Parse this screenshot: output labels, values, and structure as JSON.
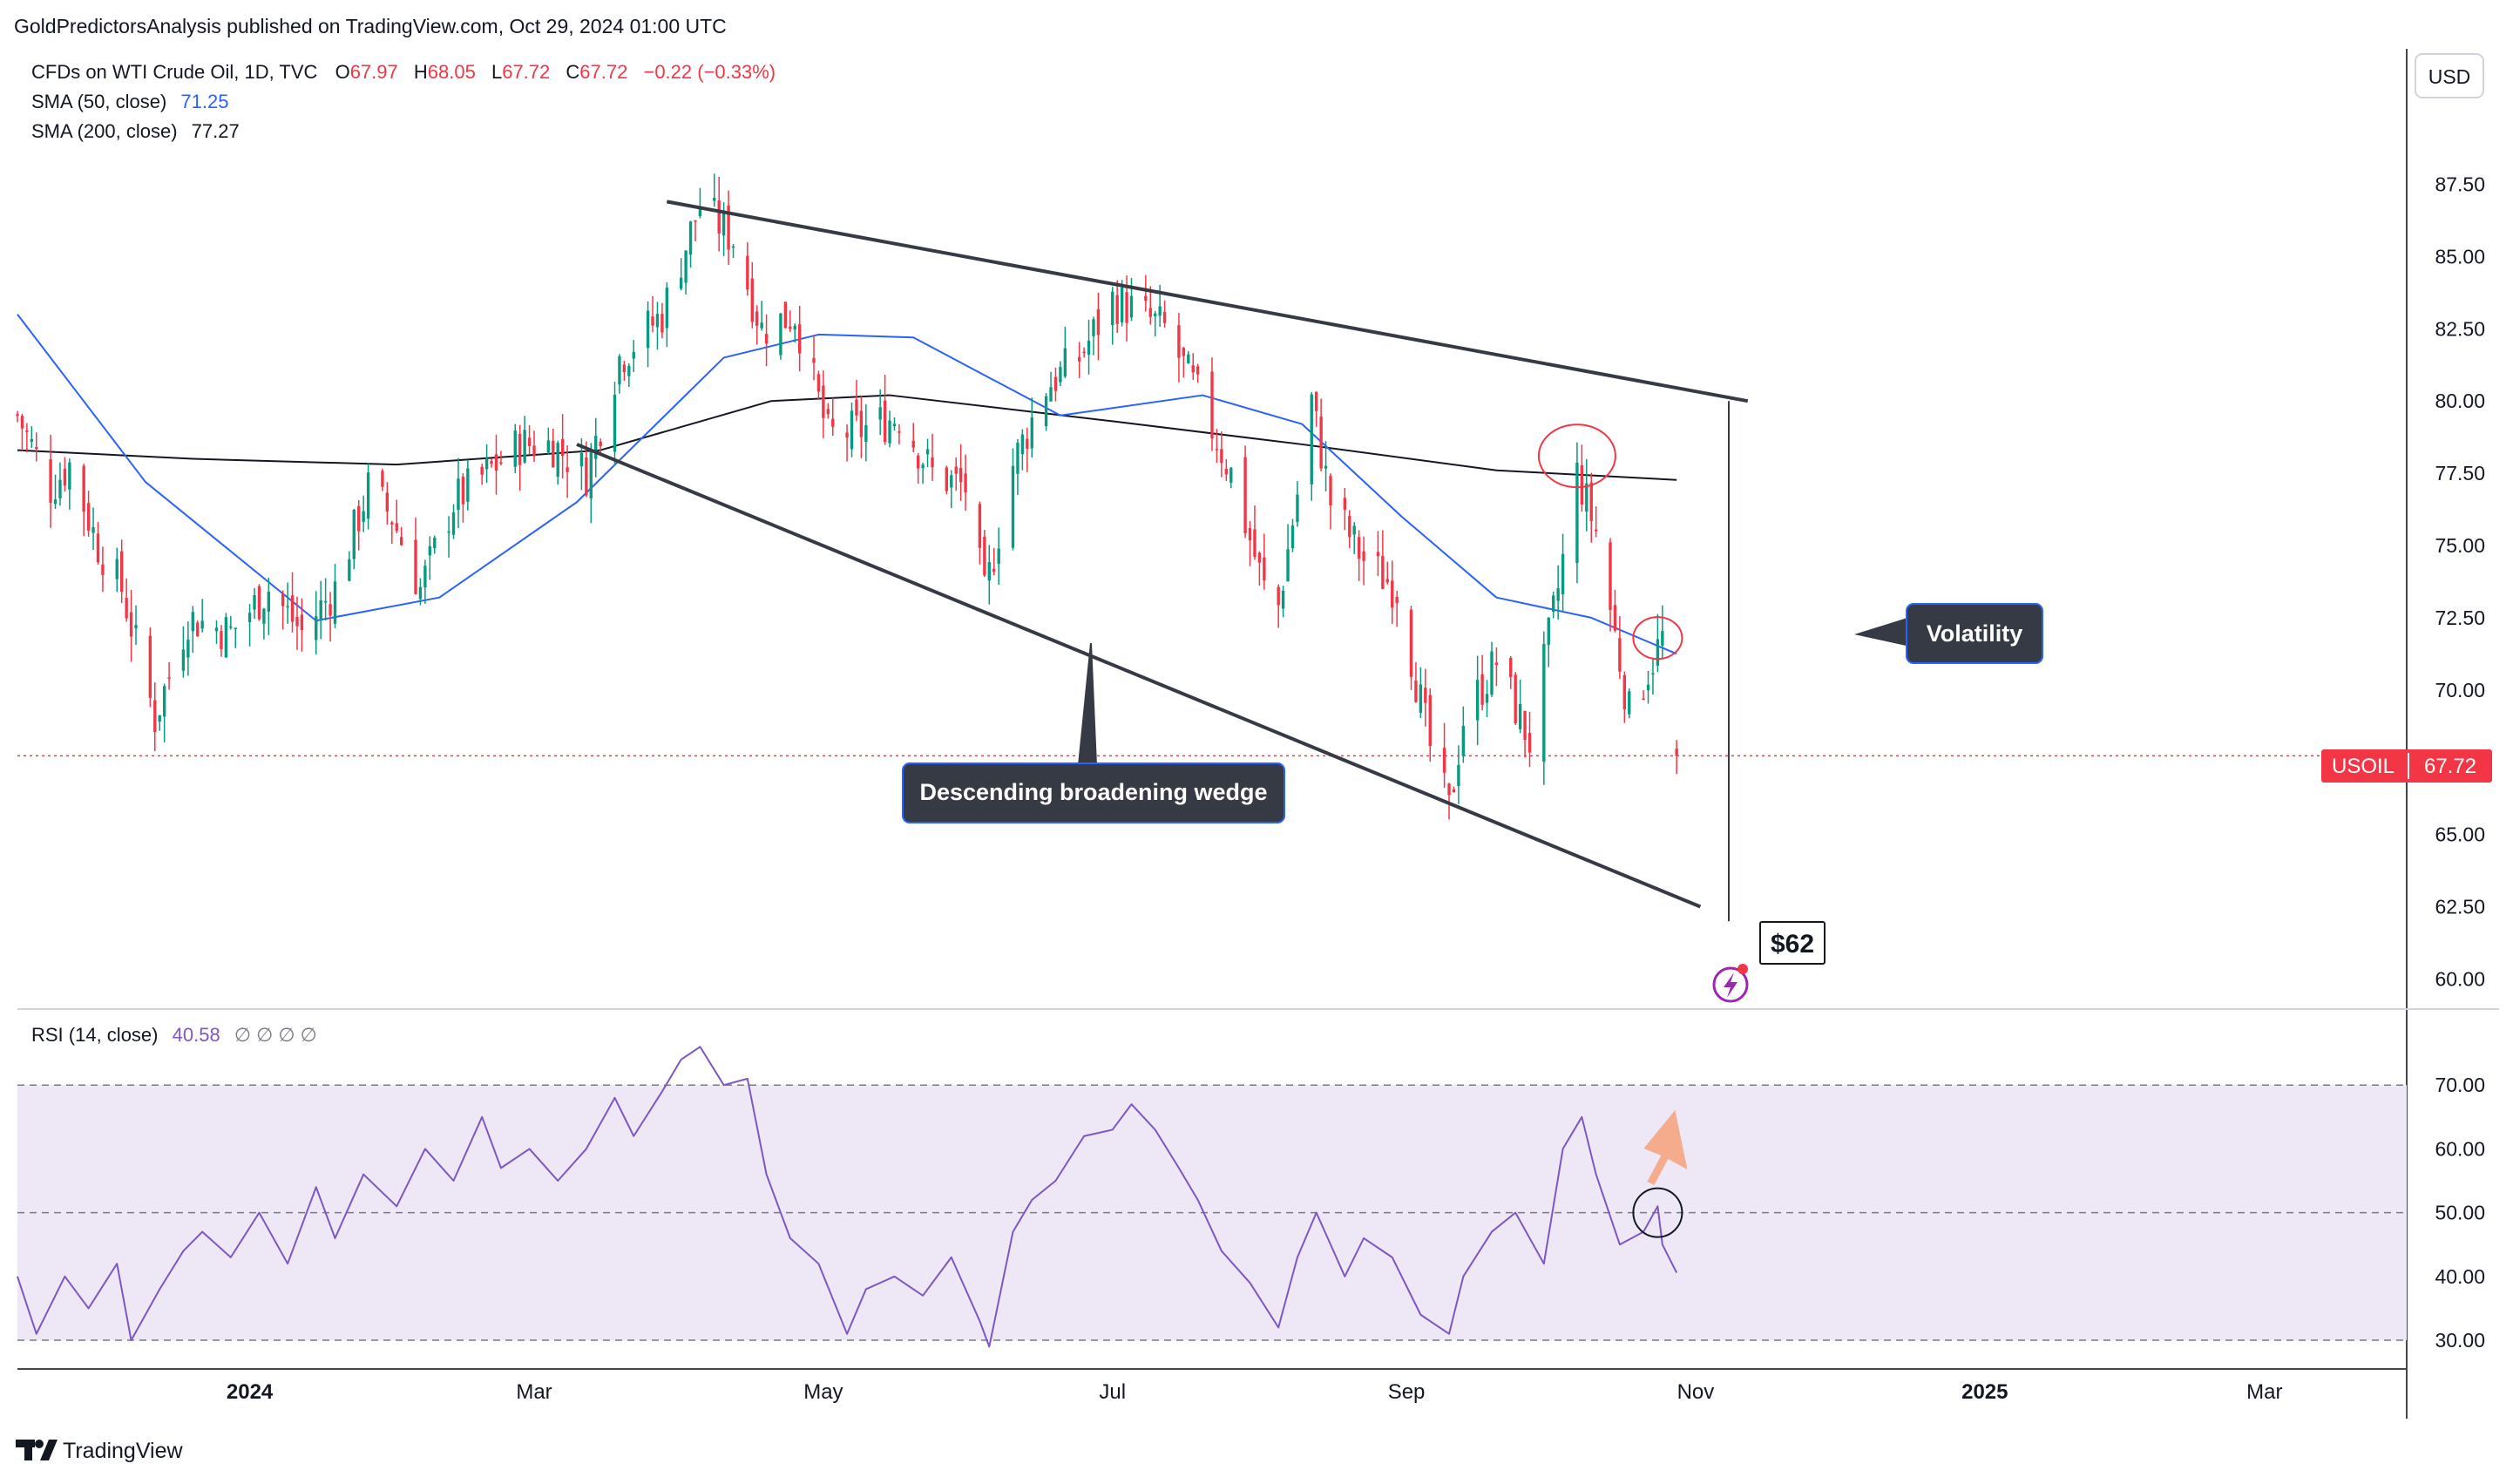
{
  "header": {
    "publisher": "GoldPredictorsAnalysis published on TradingView.com, Oct 29, 2024 01:00 UTC"
  },
  "legend": {
    "symbol_line": "CFDs on WTI Crude Oil, 1D, TVC",
    "ohlc": [
      {
        "label": "O",
        "value": "67.97"
      },
      {
        "label": "H",
        "value": "68.05"
      },
      {
        "label": "L",
        "value": "67.72"
      },
      {
        "label": "C",
        "value": "67.72"
      }
    ],
    "change": "−0.22 (−0.33%)",
    "sma50_label": "SMA (50, close)",
    "sma50_value": "71.25",
    "sma200_label": "SMA (200, close)",
    "sma200_value": "77.27",
    "rsi_label": "RSI (14, close)",
    "rsi_value": "40.58",
    "rsi_placeholders": "∅ ∅ ∅ ∅"
  },
  "currency_button": "USD",
  "price_tag": {
    "symbol": "USOIL",
    "value": "67.72"
  },
  "annotations": {
    "wedge": "Descending broadening wedge",
    "volatility": "Volatility",
    "target": "$62"
  },
  "footer": {
    "brand": "TradingView"
  },
  "colors": {
    "up": "#089981",
    "down": "#f23645",
    "sma50": "#2962ff",
    "sma200": "#131722",
    "rsi": "#7e57c2",
    "rsi_band": "#ede7f6",
    "label_bg": "#363a45",
    "label_border": "#2962ff",
    "price_tag": "#f23645",
    "arrow": "#f4a582"
  },
  "chart_data": {
    "type": "candlestick",
    "price_axis": {
      "ticks": [
        "60.00",
        "62.50",
        "65.00",
        "67.50",
        "70.00",
        "72.50",
        "75.00",
        "77.50",
        "80.00",
        "82.50",
        "85.00",
        "87.50"
      ],
      "range": [
        59.5,
        90.5
      ]
    },
    "rsi_axis": {
      "ticks": [
        "30.00",
        "40.00",
        "50.00",
        "60.00",
        "70.00"
      ],
      "range": [
        27,
        80
      ],
      "band": [
        30,
        70
      ],
      "midline": 50
    },
    "time_axis": [
      "2024",
      "Mar",
      "May",
      "Jul",
      "Sep",
      "Nov",
      "2025",
      "Mar"
    ],
    "date_range": [
      "2023-11-13",
      "2025-03-31"
    ],
    "last_price": 67.72,
    "candle_anchors": [
      [
        "2023-11-13",
        79.5
      ],
      [
        "2023-11-20",
        77.0
      ],
      [
        "2023-11-24",
        77.8
      ],
      [
        "2023-11-30",
        75.0
      ],
      [
        "2023-12-05",
        73.5
      ],
      [
        "2023-12-12",
        69.0
      ],
      [
        "2023-12-19",
        72.5
      ],
      [
        "2023-12-28",
        72.0
      ],
      [
        "2024-01-05",
        73.5
      ],
      [
        "2024-01-12",
        72.0
      ],
      [
        "2024-01-19",
        73.5
      ],
      [
        "2024-01-26",
        77.0
      ],
      [
        "2024-01-31",
        76.0
      ],
      [
        "2024-02-06",
        73.5
      ],
      [
        "2024-02-13",
        76.5
      ],
      [
        "2024-02-20",
        77.5
      ],
      [
        "2024-02-27",
        78.5
      ],
      [
        "2024-03-05",
        78.5
      ],
      [
        "2024-03-12",
        77.5
      ],
      [
        "2024-03-19",
        81.5
      ],
      [
        "2024-03-28",
        83.0
      ],
      [
        "2024-04-05",
        86.8
      ],
      [
        "2024-04-12",
        85.6
      ],
      [
        "2024-04-18",
        82.5
      ],
      [
        "2024-04-25",
        83.0
      ],
      [
        "2024-05-02",
        78.8
      ],
      [
        "2024-05-09",
        79.0
      ],
      [
        "2024-05-17",
        79.5
      ],
      [
        "2024-05-24",
        77.5
      ],
      [
        "2024-05-31",
        77.0
      ],
      [
        "2024-06-04",
        73.2
      ],
      [
        "2024-06-10",
        77.8
      ],
      [
        "2024-06-17",
        80.5
      ],
      [
        "2024-06-24",
        81.5
      ],
      [
        "2024-07-01",
        83.5
      ],
      [
        "2024-07-05",
        83.2
      ],
      [
        "2024-07-12",
        82.5
      ],
      [
        "2024-07-19",
        80.2
      ],
      [
        "2024-07-26",
        77.5
      ],
      [
        "2024-08-02",
        73.5
      ],
      [
        "2024-08-05",
        72.9
      ],
      [
        "2024-08-09",
        76.8
      ],
      [
        "2024-08-12",
        80.0
      ],
      [
        "2024-08-16",
        76.5
      ],
      [
        "2024-08-23",
        74.5
      ],
      [
        "2024-08-30",
        73.5
      ],
      [
        "2024-09-06",
        68.0
      ],
      [
        "2024-09-10",
        65.8
      ],
      [
        "2024-09-13",
        69.0
      ],
      [
        "2024-09-20",
        71.0
      ],
      [
        "2024-09-27",
        68.2
      ],
      [
        "2024-10-03",
        73.5
      ],
      [
        "2024-10-07",
        77.5
      ],
      [
        "2024-10-11",
        75.5
      ],
      [
        "2024-10-18",
        69.2
      ],
      [
        "2024-10-25",
        71.8
      ],
      [
        "2024-10-28",
        67.9
      ]
    ],
    "sma50": [
      [
        "2023-11-13",
        83.0
      ],
      [
        "2023-12-10",
        77.2
      ],
      [
        "2024-01-15",
        72.4
      ],
      [
        "2024-02-10",
        73.2
      ],
      [
        "2024-03-10",
        76.5
      ],
      [
        "2024-04-10",
        81.5
      ],
      [
        "2024-04-30",
        82.3
      ],
      [
        "2024-05-20",
        82.2
      ],
      [
        "2024-06-20",
        79.5
      ],
      [
        "2024-07-20",
        80.2
      ],
      [
        "2024-08-10",
        79.2
      ],
      [
        "2024-08-31",
        76.0
      ],
      [
        "2024-09-20",
        73.2
      ],
      [
        "2024-10-10",
        72.5
      ],
      [
        "2024-10-28",
        71.25
      ]
    ],
    "sma200": [
      [
        "2023-11-13",
        78.3
      ],
      [
        "2023-12-20",
        78.0
      ],
      [
        "2024-02-01",
        77.8
      ],
      [
        "2024-03-15",
        78.3
      ],
      [
        "2024-04-20",
        80.0
      ],
      [
        "2024-05-15",
        80.2
      ],
      [
        "2024-07-01",
        79.3
      ],
      [
        "2024-08-10",
        78.5
      ],
      [
        "2024-09-20",
        77.6
      ],
      [
        "2024-10-28",
        77.27
      ]
    ],
    "rsi": [
      [
        "2023-11-13",
        40
      ],
      [
        "2023-11-17",
        31
      ],
      [
        "2023-11-23",
        40
      ],
      [
        "2023-11-28",
        35
      ],
      [
        "2023-12-04",
        42
      ],
      [
        "2023-12-07",
        30
      ],
      [
        "2023-12-13",
        38
      ],
      [
        "2023-12-18",
        44
      ],
      [
        "2023-12-22",
        47
      ],
      [
        "2023-12-28",
        43
      ],
      [
        "2024-01-03",
        50
      ],
      [
        "2024-01-09",
        42
      ],
      [
        "2024-01-15",
        54
      ],
      [
        "2024-01-19",
        46
      ],
      [
        "2024-01-25",
        56
      ],
      [
        "2024-02-01",
        51
      ],
      [
        "2024-02-07",
        60
      ],
      [
        "2024-02-13",
        55
      ],
      [
        "2024-02-19",
        65
      ],
      [
        "2024-02-23",
        57
      ],
      [
        "2024-02-29",
        60
      ],
      [
        "2024-03-06",
        55
      ],
      [
        "2024-03-12",
        60
      ],
      [
        "2024-03-18",
        68
      ],
      [
        "2024-03-22",
        62
      ],
      [
        "2024-03-28",
        69
      ],
      [
        "2024-04-01",
        74
      ],
      [
        "2024-04-05",
        76
      ],
      [
        "2024-04-10",
        70
      ],
      [
        "2024-04-15",
        71
      ],
      [
        "2024-04-19",
        56
      ],
      [
        "2024-04-24",
        46
      ],
      [
        "2024-04-30",
        42
      ],
      [
        "2024-05-06",
        31
      ],
      [
        "2024-05-10",
        38
      ],
      [
        "2024-05-16",
        40
      ],
      [
        "2024-05-22",
        37
      ],
      [
        "2024-05-28",
        43
      ],
      [
        "2024-06-03",
        33
      ],
      [
        "2024-06-05",
        29
      ],
      [
        "2024-06-10",
        47
      ],
      [
        "2024-06-14",
        52
      ],
      [
        "2024-06-19",
        55
      ],
      [
        "2024-06-25",
        62
      ],
      [
        "2024-07-01",
        63
      ],
      [
        "2024-07-05",
        67
      ],
      [
        "2024-07-10",
        63
      ],
      [
        "2024-07-15",
        57
      ],
      [
        "2024-07-19",
        52
      ],
      [
        "2024-07-24",
        44
      ],
      [
        "2024-07-30",
        39
      ],
      [
        "2024-08-05",
        32
      ],
      [
        "2024-08-09",
        43
      ],
      [
        "2024-08-13",
        50
      ],
      [
        "2024-08-19",
        40
      ],
      [
        "2024-08-23",
        46
      ],
      [
        "2024-08-29",
        43
      ],
      [
        "2024-09-04",
        34
      ],
      [
        "2024-09-10",
        31
      ],
      [
        "2024-09-13",
        40
      ],
      [
        "2024-09-19",
        47
      ],
      [
        "2024-09-24",
        50
      ],
      [
        "2024-09-30",
        42
      ],
      [
        "2024-10-04",
        60
      ],
      [
        "2024-10-08",
        65
      ],
      [
        "2024-10-11",
        56
      ],
      [
        "2024-10-16",
        45
      ],
      [
        "2024-10-21",
        47
      ],
      [
        "2024-10-24",
        51
      ],
      [
        "2024-10-25",
        45
      ],
      [
        "2024-10-28",
        40.58
      ]
    ]
  }
}
